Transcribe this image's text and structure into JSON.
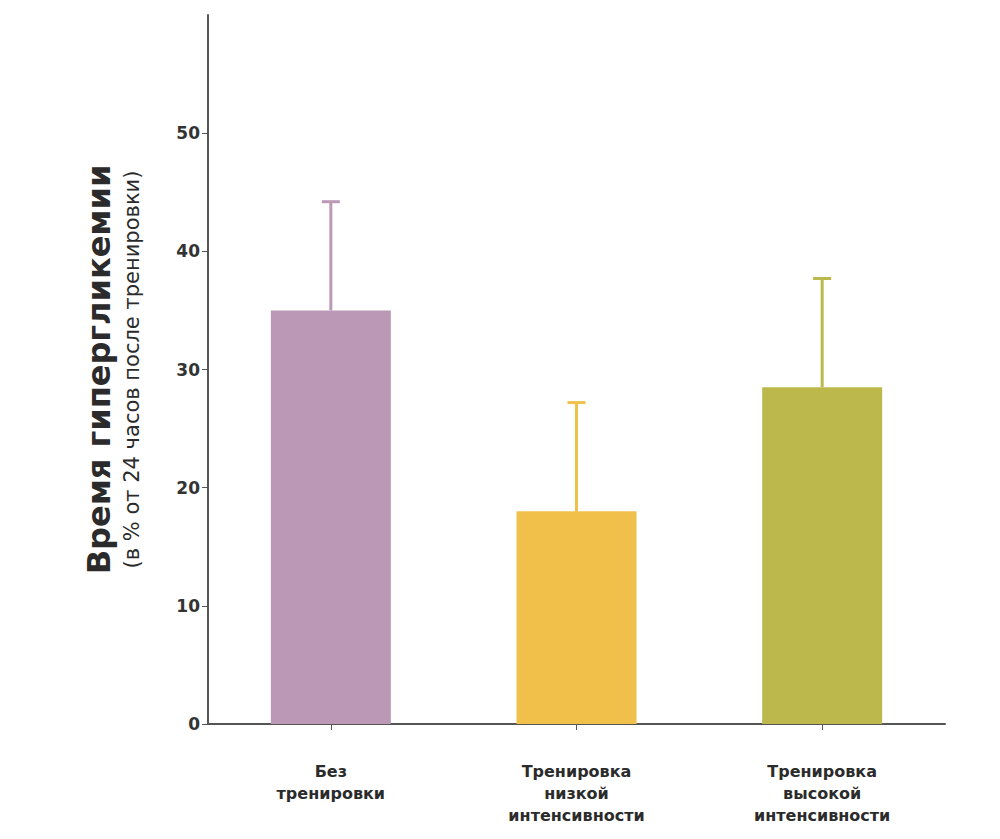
{
  "chart_data": {
    "type": "bar",
    "ylabel": "Время гипергликемии",
    "ylabel_note": "(в % от 24 часов после тренировки)",
    "categories": [
      "Без\nтренировки",
      "Тренировка\nнизкой\nинтенсивности",
      "Тренировка\nвысокой\nинтенсивности"
    ],
    "values": [
      35,
      18,
      28.5
    ],
    "errors": [
      9.2,
      9.2,
      9.2
    ],
    "colors": [
      "#bb98b5",
      "#f0c04a",
      "#bdb84c"
    ],
    "ylim": [
      0,
      60
    ],
    "yticks": [
      0,
      10,
      20,
      30,
      40,
      50
    ],
    "grid": false
  }
}
